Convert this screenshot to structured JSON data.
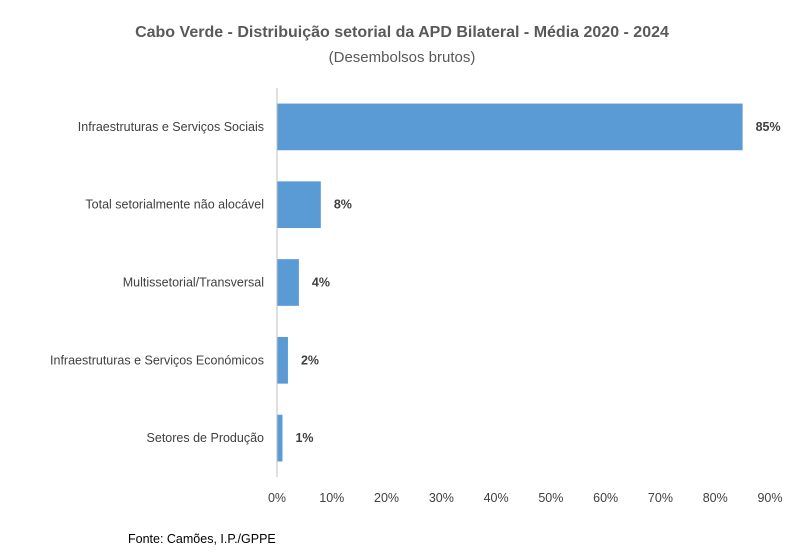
{
  "chart_data": {
    "type": "bar",
    "orientation": "horizontal",
    "title": "Cabo Verde - Distribuição setorial da APD Bilateral - Média 2020 - 2024",
    "subtitle": "(Desembolsos brutos)",
    "categories": [
      "Infraestruturas e Serviços Sociais",
      "Total setorialmente não alocável",
      "Multissetorial/Transversal",
      "Infraestruturas e Serviços Económicos",
      "Setores de Produção"
    ],
    "values": [
      85,
      8,
      4,
      2,
      1
    ],
    "data_labels": [
      "85%",
      "8%",
      "4%",
      "2%",
      "1%"
    ],
    "xlim": [
      0,
      90
    ],
    "xticks": [
      "0%",
      "10%",
      "20%",
      "30%",
      "40%",
      "50%",
      "60%",
      "70%",
      "80%",
      "90%"
    ],
    "xlabel": "",
    "ylabel": "",
    "grid": false,
    "bar_color": "#5B9BD5",
    "source": "Fonte: Camões, I.P./GPPE"
  }
}
